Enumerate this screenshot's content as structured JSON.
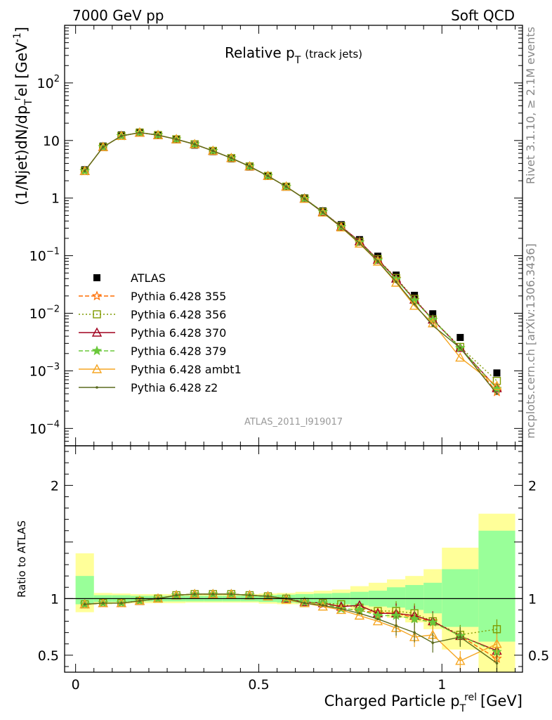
{
  "header": {
    "left": "7000 GeV pp",
    "right": "Soft QCD",
    "side_top": "Rivet 3.1.10, ≥ 2.1M events",
    "side_bottom": "mcplots.cern.ch [arXiv:1306.3436]",
    "analysis_id": "ATLAS_2011_I919017"
  },
  "chart_data": [
    {
      "type": "line",
      "panel": "main",
      "title": "Relative p_T (track jets)",
      "title_main": "Relative p",
      "title_sub": "T",
      "title_extra": "(track jets)",
      "ylabel": "(1/Njet)dN/dp_T^rel [GeV^-1]",
      "yscale": "log",
      "ylim": [
        5e-05,
        1000
      ],
      "xlim": [
        -0.03,
        1.22
      ],
      "yticks": [
        "10^-4",
        "10^-3",
        "10^-2",
        "10^-1",
        "1",
        "10",
        "10^2"
      ],
      "x": [
        0.025,
        0.075,
        0.125,
        0.175,
        0.225,
        0.275,
        0.325,
        0.375,
        0.425,
        0.475,
        0.525,
        0.575,
        0.625,
        0.675,
        0.725,
        0.775,
        0.825,
        0.875,
        0.925,
        0.975,
        1.05,
        1.15
      ],
      "series": [
        {
          "name": "ATLAS",
          "color": "#000000",
          "marker": "square",
          "values": [
            3.1,
            8.0,
            12.5,
            14.0,
            12.5,
            10.3,
            8.3,
            6.4,
            4.8,
            3.45,
            2.38,
            1.58,
            1.01,
            0.6,
            0.345,
            0.19,
            0.098,
            0.046,
            0.0205,
            0.0098,
            0.0038,
            0.00092
          ]
        },
        {
          "name": "Pythia 6.428 355",
          "color": "#ff6d00",
          "marker": "star",
          "dash": "6,3",
          "values": [
            2.95,
            7.7,
            12.0,
            13.7,
            12.4,
            10.5,
            8.6,
            6.6,
            4.95,
            3.55,
            2.42,
            1.58,
            0.98,
            0.575,
            0.315,
            0.17,
            0.086,
            0.04,
            0.017,
            0.0077,
            0.0025,
            0.00043
          ]
        },
        {
          "name": "Pythia 6.428 356",
          "color": "#7f9a00",
          "marker": "open-square",
          "dash": "2,3",
          "values": [
            2.95,
            7.7,
            12.0,
            13.7,
            12.4,
            10.5,
            8.6,
            6.6,
            4.95,
            3.55,
            2.42,
            1.58,
            0.98,
            0.575,
            0.325,
            0.175,
            0.087,
            0.041,
            0.0178,
            0.0078,
            0.0026,
            0.00067
          ]
        },
        {
          "name": "Pythia 6.428 370",
          "color": "#a0001e",
          "marker": "open-triangle",
          "values": [
            2.95,
            7.7,
            12.0,
            13.7,
            12.4,
            10.5,
            8.6,
            6.6,
            4.95,
            3.55,
            2.42,
            1.58,
            0.98,
            0.575,
            0.32,
            0.178,
            0.085,
            0.04,
            0.0173,
            0.0078,
            0.0025,
            0.0005
          ]
        },
        {
          "name": "Pythia 6.428 379",
          "color": "#6ac83a",
          "marker": "star",
          "dash": "6,3",
          "values": [
            2.95,
            7.7,
            12.0,
            13.7,
            12.4,
            10.5,
            8.6,
            6.6,
            4.95,
            3.55,
            2.42,
            1.58,
            0.98,
            0.575,
            0.315,
            0.172,
            0.083,
            0.039,
            0.0168,
            0.0077,
            0.0025,
            0.00049
          ]
        },
        {
          "name": "Pythia 6.428 ambt1",
          "color": "#f5a623",
          "marker": "open-triangle",
          "values": [
            2.95,
            7.7,
            12.0,
            13.7,
            12.4,
            10.5,
            8.6,
            6.6,
            4.95,
            3.55,
            2.42,
            1.58,
            0.97,
            0.56,
            0.31,
            0.162,
            0.079,
            0.034,
            0.0135,
            0.0067,
            0.0017,
            0.00055
          ]
        },
        {
          "name": "Pythia 6.428 z2",
          "color": "#5a6b1e",
          "marker": "dot",
          "values": [
            2.95,
            7.7,
            12.0,
            13.7,
            12.4,
            10.5,
            8.6,
            6.6,
            4.95,
            3.55,
            2.42,
            1.58,
            0.97,
            0.565,
            0.315,
            0.165,
            0.08,
            0.035,
            0.0144,
            0.0061,
            0.0025,
            0.0004
          ]
        }
      ],
      "legend_position": "middle-left"
    },
    {
      "type": "line",
      "panel": "ratio",
      "ylabel": "Ratio to ATLAS",
      "xlabel": "Charged Particle p_T^rel [GeV]",
      "xlabel_main": "Charged Particle p",
      "xlabel_sub": "T",
      "xlabel_sup": "rel",
      "xlabel_unit": "[GeV]",
      "ylim": [
        0.35,
        2.35
      ],
      "yticks": [
        "0.5",
        "1",
        "2"
      ],
      "xticks": [
        "0",
        "0.5",
        "1"
      ],
      "bins": [
        0,
        0.05,
        0.1,
        0.15,
        0.2,
        0.25,
        0.3,
        0.35,
        0.4,
        0.45,
        0.5,
        0.55,
        0.6,
        0.65,
        0.7,
        0.75,
        0.8,
        0.85,
        0.9,
        0.95,
        1.0,
        1.1,
        1.2
      ],
      "band_yellow": [
        [
          0.88,
          1.4
        ],
        [
          0.95,
          1.05
        ],
        [
          0.955,
          1.045
        ],
        [
          0.96,
          1.04
        ],
        [
          0.96,
          1.04
        ],
        [
          0.96,
          1.04
        ],
        [
          0.965,
          1.04
        ],
        [
          0.965,
          1.04
        ],
        [
          0.965,
          1.04
        ],
        [
          0.965,
          1.04
        ],
        [
          0.955,
          1.045
        ],
        [
          0.95,
          1.05
        ],
        [
          0.95,
          1.06
        ],
        [
          0.94,
          1.07
        ],
        [
          0.93,
          1.08
        ],
        [
          0.9,
          1.11
        ],
        [
          0.87,
          1.14
        ],
        [
          0.83,
          1.17
        ],
        [
          0.79,
          1.2
        ],
        [
          0.73,
          1.26
        ],
        [
          0.55,
          1.45
        ],
        [
          0.35,
          1.75
        ]
      ],
      "band_green": [
        [
          0.95,
          1.2
        ],
        [
          0.97,
          1.03
        ],
        [
          0.97,
          1.03
        ],
        [
          0.975,
          1.025
        ],
        [
          0.975,
          1.025
        ],
        [
          0.975,
          1.025
        ],
        [
          0.975,
          1.025
        ],
        [
          0.975,
          1.025
        ],
        [
          0.975,
          1.025
        ],
        [
          0.975,
          1.025
        ],
        [
          0.97,
          1.03
        ],
        [
          0.965,
          1.035
        ],
        [
          0.96,
          1.04
        ],
        [
          0.955,
          1.045
        ],
        [
          0.95,
          1.05
        ],
        [
          0.94,
          1.06
        ],
        [
          0.93,
          1.07
        ],
        [
          0.92,
          1.1
        ],
        [
          0.9,
          1.12
        ],
        [
          0.87,
          1.14
        ],
        [
          0.75,
          1.26
        ],
        [
          0.62,
          1.6
        ]
      ],
      "x": [
        0.025,
        0.075,
        0.125,
        0.175,
        0.225,
        0.275,
        0.325,
        0.375,
        0.425,
        0.475,
        0.525,
        0.575,
        0.625,
        0.675,
        0.725,
        0.775,
        0.825,
        0.875,
        0.925,
        0.975,
        1.05,
        1.15
      ],
      "series": [
        {
          "name": "Pythia 6.428 355",
          "color": "#ff6d00",
          "marker": "star",
          "dash": "6,3",
          "values": [
            0.95,
            0.96,
            0.96,
            0.98,
            1.0,
            1.03,
            1.04,
            1.04,
            1.04,
            1.03,
            1.02,
            1.0,
            0.97,
            0.95,
            0.92,
            0.89,
            0.88,
            0.87,
            0.83,
            0.8,
            0.67,
            0.47
          ]
        },
        {
          "name": "Pythia 6.428 356",
          "color": "#7f9a00",
          "marker": "open-square",
          "dash": "2,3",
          "values": [
            0.95,
            0.96,
            0.96,
            0.98,
            1.0,
            1.03,
            1.04,
            1.04,
            1.04,
            1.03,
            1.02,
            1.0,
            0.97,
            0.96,
            0.95,
            0.92,
            0.89,
            0.89,
            0.87,
            0.8,
            0.68,
            0.73
          ]
        },
        {
          "name": "Pythia 6.428 370",
          "color": "#a0001e",
          "marker": "open-triangle",
          "values": [
            0.95,
            0.96,
            0.96,
            0.98,
            1.0,
            1.03,
            1.04,
            1.04,
            1.04,
            1.03,
            1.02,
            1.0,
            0.97,
            0.96,
            0.93,
            0.94,
            0.87,
            0.87,
            0.85,
            0.8,
            0.67,
            0.54
          ]
        },
        {
          "name": "Pythia 6.428 379",
          "color": "#6ac83a",
          "marker": "star",
          "dash": "6,3",
          "values": [
            0.95,
            0.96,
            0.96,
            0.98,
            1.0,
            1.03,
            1.04,
            1.04,
            1.04,
            1.03,
            1.02,
            1.0,
            0.97,
            0.96,
            0.91,
            0.9,
            0.85,
            0.85,
            0.82,
            0.79,
            0.67,
            0.53
          ]
        },
        {
          "name": "Pythia 6.428 ambt1",
          "color": "#f5a623",
          "marker": "open-triangle",
          "values": [
            0.95,
            0.96,
            0.96,
            0.98,
            1.0,
            1.03,
            1.04,
            1.04,
            1.04,
            1.03,
            1.02,
            0.99,
            0.96,
            0.93,
            0.9,
            0.85,
            0.8,
            0.74,
            0.66,
            0.68,
            0.45,
            0.6
          ]
        },
        {
          "name": "Pythia 6.428 z2",
          "color": "#5a6b1e",
          "marker": "dot",
          "values": [
            0.95,
            0.96,
            0.96,
            0.98,
            1.0,
            1.03,
            1.04,
            1.04,
            1.04,
            1.03,
            1.02,
            1.0,
            0.96,
            0.94,
            0.91,
            0.87,
            0.82,
            0.76,
            0.7,
            0.61,
            0.66,
            0.43
          ]
        }
      ]
    }
  ]
}
